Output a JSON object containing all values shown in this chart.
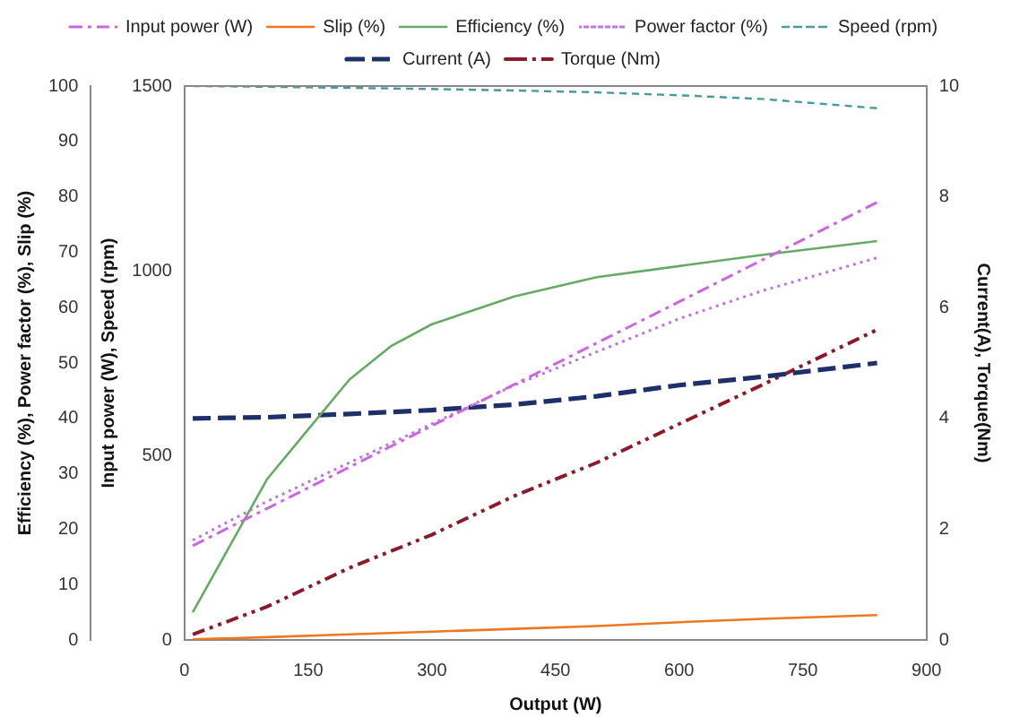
{
  "chart_data": {
    "type": "line",
    "xlabel": "Output (W)",
    "ylabel": "Efficiency (%), Power factor (%), Slip (%)",
    "y2label": "Current(A), Torque(Nm)",
    "y3label": "Input power (W), Speed (rpm)",
    "xlim": [
      0,
      900
    ],
    "xticks": [
      0,
      150,
      300,
      450,
      600,
      750,
      900
    ],
    "ylim": [
      0,
      100
    ],
    "yticks": [
      0,
      10,
      20,
      30,
      40,
      50,
      60,
      70,
      80,
      90,
      100
    ],
    "y2lim": [
      0,
      10
    ],
    "y2ticks": [
      0,
      2,
      4,
      6,
      8,
      10
    ],
    "y3lim": [
      0,
      1500
    ],
    "y3ticks": [
      0,
      500,
      1000,
      1500
    ],
    "grid": false,
    "legend": "top",
    "marker": "none",
    "series": [
      {
        "name": "Input power (W)",
        "color": "#cc66dd",
        "line_style": "dashdot",
        "axis": "y3",
        "x": [
          10,
          100,
          200,
          300,
          400,
          500,
          600,
          700,
          840
        ],
        "values": [
          255,
          356,
          468,
          580,
          692,
          804,
          916,
          1028,
          1185
        ]
      },
      {
        "name": "Slip (%)",
        "color": "#ee7722",
        "line_style": "solid",
        "axis": "y",
        "x": [
          10,
          100,
          200,
          300,
          400,
          500,
          600,
          700,
          840
        ],
        "values": [
          0.1,
          0.5,
          1,
          1.5,
          2,
          2.5,
          3.2,
          3.8,
          4.5
        ]
      },
      {
        "name": "Efficiency (%)",
        "color": "#66aa66",
        "line_style": "solid",
        "axis": "y",
        "x": [
          10,
          100,
          150,
          200,
          250,
          300,
          400,
          500,
          600,
          700,
          840
        ],
        "values": [
          5,
          29,
          38,
          47,
          53,
          57,
          62,
          65.5,
          67.5,
          69.5,
          72
        ]
      },
      {
        "name": "Power factor (%)",
        "color": "#bb77dd",
        "line_style": "dotted",
        "axis": "y",
        "x": [
          10,
          100,
          200,
          300,
          400,
          500,
          600,
          700,
          840
        ],
        "values": [
          18,
          25,
          32,
          39,
          46,
          52,
          58,
          63,
          69
        ]
      },
      {
        "name": "Speed (rpm)",
        "color": "#4a9a9a",
        "line_style": "dashed",
        "axis": "y3",
        "x": [
          10,
          100,
          200,
          300,
          400,
          500,
          600,
          700,
          840
        ],
        "values": [
          1500,
          1498,
          1495,
          1492,
          1488,
          1483,
          1475,
          1465,
          1440
        ]
      },
      {
        "name": "Current (A)",
        "color": "#1f2f6a",
        "line_style": "longdash",
        "axis": "y2",
        "x": [
          10,
          100,
          200,
          300,
          400,
          500,
          600,
          700,
          840
        ],
        "values": [
          4.0,
          4.02,
          4.08,
          4.15,
          4.25,
          4.4,
          4.6,
          4.75,
          5.0
        ]
      },
      {
        "name": "Torque (Nm)",
        "color": "#8b1a2a",
        "line_style": "dashdotdot",
        "axis": "y2",
        "x": [
          10,
          100,
          200,
          300,
          400,
          500,
          600,
          700,
          840
        ],
        "values": [
          0.1,
          0.6,
          1.3,
          1.9,
          2.6,
          3.2,
          3.9,
          4.6,
          5.6
        ]
      }
    ]
  }
}
